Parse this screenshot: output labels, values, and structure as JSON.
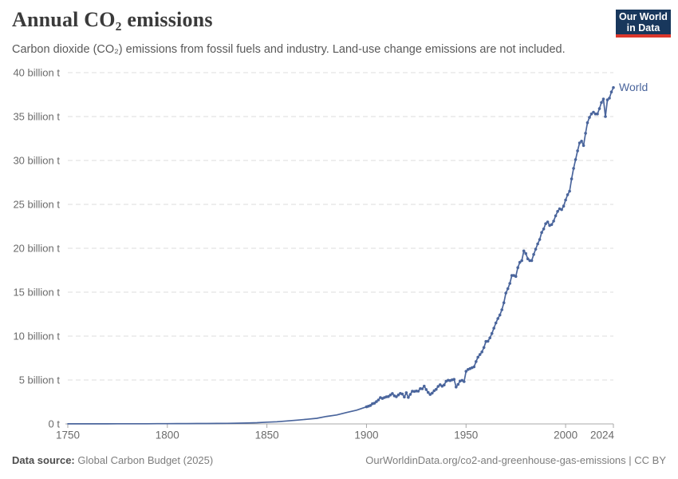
{
  "header": {
    "title": "Annual CO₂ emissions",
    "subtitle": "Carbon dioxide (CO₂) emissions from fossil fuels and industry. Land-use change emissions are not included.",
    "logo": {
      "line1": "Our World",
      "line2": "in Data",
      "bg": "#18375c",
      "stripe": "#dc372c"
    }
  },
  "footer": {
    "source_label": "Data source:",
    "source": "Global Carbon Budget (2025)",
    "credit": "OurWorldinData.org/co2-and-greenhouse-gas-emissions | CC BY"
  },
  "chart_data": {
    "type": "line",
    "title": "Annual CO₂ emissions",
    "series_label": "World",
    "unit": "billion t",
    "xlim": [
      1750,
      2024
    ],
    "ylim": [
      0,
      40
    ],
    "grid": "dashed-horizontal",
    "legend_position": "end-of-line",
    "colors": {
      "line": "#4a659c",
      "grid": "#dcdcdc",
      "axis": "#a8a8a8",
      "tick_label": "#6b6b6b"
    },
    "xticks": [
      {
        "value": 1750,
        "label": "1750"
      },
      {
        "value": 1800,
        "label": "1800"
      },
      {
        "value": 1850,
        "label": "1850"
      },
      {
        "value": 1900,
        "label": "1900"
      },
      {
        "value": 1950,
        "label": "1950"
      },
      {
        "value": 2000,
        "label": "2000"
      },
      {
        "value": 2024,
        "label": "2024"
      }
    ],
    "yticks": [
      {
        "value": 0,
        "label": "0 t"
      },
      {
        "value": 5,
        "label": "5 billion t"
      },
      {
        "value": 10,
        "label": "10 billion t"
      },
      {
        "value": 15,
        "label": "15 billion t"
      },
      {
        "value": 20,
        "label": "20 billion t"
      },
      {
        "value": 25,
        "label": "25 billion t"
      },
      {
        "value": 30,
        "label": "30 billion t"
      },
      {
        "value": 35,
        "label": "35 billion t"
      },
      {
        "value": 40,
        "label": "40 billion t"
      }
    ],
    "points": [
      [
        1750,
        0.01
      ],
      [
        1755,
        0.011
      ],
      [
        1760,
        0.011
      ],
      [
        1765,
        0.012
      ],
      [
        1770,
        0.013
      ],
      [
        1775,
        0.014
      ],
      [
        1780,
        0.016
      ],
      [
        1785,
        0.018
      ],
      [
        1790,
        0.021
      ],
      [
        1795,
        0.025
      ],
      [
        1800,
        0.03
      ],
      [
        1805,
        0.033
      ],
      [
        1810,
        0.037
      ],
      [
        1815,
        0.042
      ],
      [
        1820,
        0.05
      ],
      [
        1825,
        0.057
      ],
      [
        1830,
        0.068
      ],
      [
        1835,
        0.082
      ],
      [
        1840,
        0.1
      ],
      [
        1845,
        0.14
      ],
      [
        1850,
        0.2
      ],
      [
        1855,
        0.25
      ],
      [
        1860,
        0.34
      ],
      [
        1865,
        0.43
      ],
      [
        1870,
        0.53
      ],
      [
        1875,
        0.64
      ],
      [
        1880,
        0.85
      ],
      [
        1885,
        1.02
      ],
      [
        1890,
        1.3
      ],
      [
        1895,
        1.56
      ],
      [
        1900,
        1.95
      ],
      [
        1901,
        2.02
      ],
      [
        1902,
        2.1
      ],
      [
        1903,
        2.3
      ],
      [
        1904,
        2.35
      ],
      [
        1905,
        2.54
      ],
      [
        1906,
        2.73
      ],
      [
        1907,
        3.0
      ],
      [
        1908,
        2.9
      ],
      [
        1909,
        3.0
      ],
      [
        1910,
        3.08
      ],
      [
        1911,
        3.12
      ],
      [
        1912,
        3.29
      ],
      [
        1913,
        3.46
      ],
      [
        1914,
        3.2
      ],
      [
        1915,
        3.1
      ],
      [
        1916,
        3.3
      ],
      [
        1917,
        3.47
      ],
      [
        1918,
        3.4
      ],
      [
        1919,
        3.06
      ],
      [
        1920,
        3.55
      ],
      [
        1921,
        3.02
      ],
      [
        1922,
        3.36
      ],
      [
        1923,
        3.73
      ],
      [
        1924,
        3.7
      ],
      [
        1925,
        3.75
      ],
      [
        1926,
        3.73
      ],
      [
        1927,
        4.02
      ],
      [
        1928,
        4.0
      ],
      [
        1929,
        4.3
      ],
      [
        1930,
        3.92
      ],
      [
        1931,
        3.58
      ],
      [
        1932,
        3.35
      ],
      [
        1933,
        3.51
      ],
      [
        1934,
        3.78
      ],
      [
        1935,
        3.94
      ],
      [
        1936,
        4.27
      ],
      [
        1937,
        4.46
      ],
      [
        1938,
        4.3
      ],
      [
        1939,
        4.44
      ],
      [
        1940,
        4.85
      ],
      [
        1941,
        4.97
      ],
      [
        1942,
        4.94
      ],
      [
        1943,
        5.02
      ],
      [
        1944,
        5.07
      ],
      [
        1945,
        4.2
      ],
      [
        1946,
        4.5
      ],
      [
        1947,
        4.88
      ],
      [
        1948,
        4.96
      ],
      [
        1949,
        4.82
      ],
      [
        1950,
        5.99
      ],
      [
        1951,
        6.2
      ],
      [
        1952,
        6.3
      ],
      [
        1953,
        6.4
      ],
      [
        1954,
        6.5
      ],
      [
        1955,
        7.1
      ],
      [
        1956,
        7.6
      ],
      [
        1957,
        7.9
      ],
      [
        1958,
        8.2
      ],
      [
        1959,
        8.7
      ],
      [
        1960,
        9.39
      ],
      [
        1961,
        9.42
      ],
      [
        1962,
        9.8
      ],
      [
        1963,
        10.3
      ],
      [
        1964,
        10.9
      ],
      [
        1965,
        11.5
      ],
      [
        1966,
        12.0
      ],
      [
        1967,
        12.4
      ],
      [
        1968,
        13.0
      ],
      [
        1969,
        13.8
      ],
      [
        1970,
        14.9
      ],
      [
        1971,
        15.4
      ],
      [
        1972,
        16.0
      ],
      [
        1973,
        16.9
      ],
      [
        1974,
        16.9
      ],
      [
        1975,
        16.8
      ],
      [
        1976,
        17.8
      ],
      [
        1977,
        18.4
      ],
      [
        1978,
        18.6
      ],
      [
        1979,
        19.7
      ],
      [
        1980,
        19.4
      ],
      [
        1981,
        18.8
      ],
      [
        1982,
        18.6
      ],
      [
        1983,
        18.6
      ],
      [
        1984,
        19.3
      ],
      [
        1985,
        19.9
      ],
      [
        1986,
        20.5
      ],
      [
        1987,
        21.0
      ],
      [
        1988,
        21.8
      ],
      [
        1989,
        22.2
      ],
      [
        1990,
        22.8
      ],
      [
        1991,
        23.0
      ],
      [
        1992,
        22.6
      ],
      [
        1993,
        22.7
      ],
      [
        1994,
        23.1
      ],
      [
        1995,
        23.7
      ],
      [
        1996,
        24.2
      ],
      [
        1997,
        24.5
      ],
      [
        1998,
        24.4
      ],
      [
        1999,
        24.8
      ],
      [
        2000,
        25.5
      ],
      [
        2001,
        26.1
      ],
      [
        2002,
        26.5
      ],
      [
        2003,
        27.9
      ],
      [
        2004,
        29.1
      ],
      [
        2005,
        30.1
      ],
      [
        2006,
        31.1
      ],
      [
        2007,
        32.0
      ],
      [
        2008,
        32.2
      ],
      [
        2009,
        31.7
      ],
      [
        2010,
        33.1
      ],
      [
        2011,
        34.3
      ],
      [
        2012,
        34.9
      ],
      [
        2013,
        35.3
      ],
      [
        2014,
        35.5
      ],
      [
        2015,
        35.3
      ],
      [
        2016,
        35.3
      ],
      [
        2017,
        35.9
      ],
      [
        2018,
        36.6
      ],
      [
        2019,
        37.0
      ],
      [
        2020,
        35.0
      ],
      [
        2021,
        36.9
      ],
      [
        2022,
        37.1
      ],
      [
        2023,
        37.8
      ],
      [
        2024,
        38.3
      ]
    ]
  }
}
